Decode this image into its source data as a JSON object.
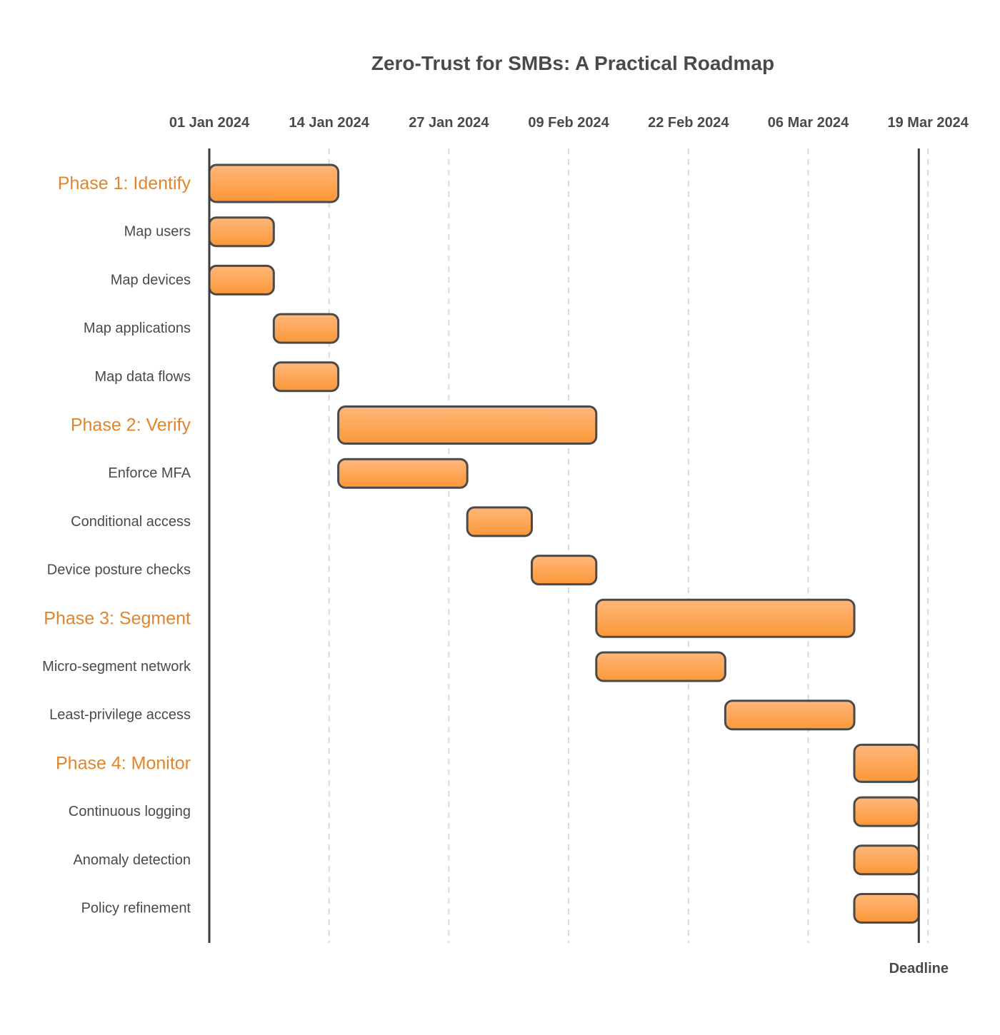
{
  "chart_data": {
    "type": "gantt",
    "title": "Zero-Trust for SMBs: A Practical Roadmap",
    "x_axis": {
      "type": "date",
      "ticks": [
        "01 Jan 2024",
        "14 Jan 2024",
        "27 Jan 2024",
        "09 Feb 2024",
        "22 Feb 2024",
        "06 Mar 2024",
        "19 Mar 2024"
      ],
      "range": [
        "2024-01-01",
        "2024-03-21"
      ],
      "grid": true
    },
    "tasks": [
      {
        "name": "Phase 1: Identify",
        "kind": "phase",
        "start": "2024-01-01",
        "end": "2024-01-14"
      },
      {
        "name": "Map users",
        "kind": "task",
        "start": "2024-01-01",
        "end": "2024-01-07"
      },
      {
        "name": "Map devices",
        "kind": "task",
        "start": "2024-01-01",
        "end": "2024-01-07"
      },
      {
        "name": "Map applications",
        "kind": "task",
        "start": "2024-01-08",
        "end": "2024-01-14"
      },
      {
        "name": "Map data flows",
        "kind": "task",
        "start": "2024-01-08",
        "end": "2024-01-14"
      },
      {
        "name": "Phase 2: Verify",
        "kind": "phase",
        "start": "2024-01-15",
        "end": "2024-02-11"
      },
      {
        "name": "Enforce MFA",
        "kind": "task",
        "start": "2024-01-15",
        "end": "2024-01-28"
      },
      {
        "name": "Conditional access",
        "kind": "task",
        "start": "2024-01-29",
        "end": "2024-02-04"
      },
      {
        "name": "Device posture checks",
        "kind": "task",
        "start": "2024-02-05",
        "end": "2024-02-11"
      },
      {
        "name": "Phase 3: Segment",
        "kind": "phase",
        "start": "2024-02-12",
        "end": "2024-03-10"
      },
      {
        "name": "Micro-segment network",
        "kind": "task",
        "start": "2024-02-12",
        "end": "2024-02-25"
      },
      {
        "name": "Least-privilege access",
        "kind": "task",
        "start": "2024-02-26",
        "end": "2024-03-10"
      },
      {
        "name": "Phase 4: Monitor",
        "kind": "phase",
        "start": "2024-03-11",
        "end": "2024-03-17"
      },
      {
        "name": "Continuous logging",
        "kind": "task",
        "start": "2024-03-11",
        "end": "2024-03-17"
      },
      {
        "name": "Anomaly detection",
        "kind": "task",
        "start": "2024-03-11",
        "end": "2024-03-17"
      },
      {
        "name": "Policy refinement",
        "kind": "task",
        "start": "2024-03-11",
        "end": "2024-03-17"
      }
    ],
    "markers": [
      {
        "label": "Deadline",
        "date": "2024-03-17"
      }
    ]
  },
  "colors": {
    "bar_top": "#ffb77a",
    "bar_bottom": "#fb9838",
    "bar_border": "#4a4a4a",
    "phase_label": "#e0852e",
    "text": "#4a4a4a",
    "grid": "#d9d9d9"
  }
}
